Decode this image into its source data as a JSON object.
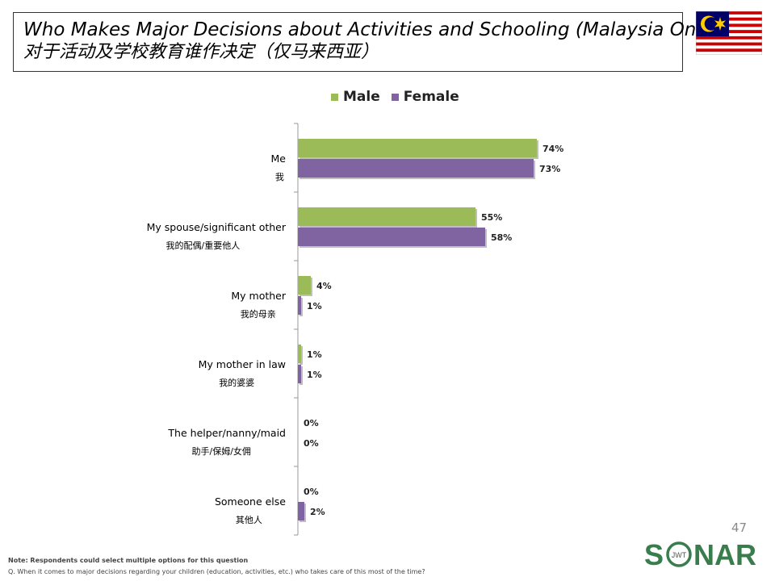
{
  "header": {
    "title_en": "Who Makes Major Decisions about Activities and Schooling (Malaysia Only)",
    "title_cn": "对于活动及学校教育谁作决定（仅马来西亚）"
  },
  "flag": {
    "icon": "malaysia-flag-icon"
  },
  "colors": {
    "male": "#9BBB59",
    "female": "#8064A2"
  },
  "chart_data": {
    "type": "bar",
    "orientation": "horizontal",
    "title": "",
    "categories": [
      {
        "en": "Me",
        "cn": "我"
      },
      {
        "en": "My spouse/significant other",
        "cn": "我的配偶/重要他人"
      },
      {
        "en": "My mother",
        "cn": "我的母亲"
      },
      {
        "en": "My mother in law",
        "cn": "我的婆婆"
      },
      {
        "en": "The helper/nanny/maid",
        "cn": "助手/保姆/女佣"
      },
      {
        "en": "Someone else",
        "cn": "其他人"
      }
    ],
    "series": [
      {
        "name": "Male",
        "values": [
          74,
          55,
          4,
          1,
          0,
          0
        ],
        "labels": [
          "74%",
          "55%",
          "4%",
          "1%",
          "0%",
          "0%"
        ]
      },
      {
        "name": "Female",
        "values": [
          73,
          58,
          1,
          1,
          0,
          2
        ],
        "labels": [
          "73%",
          "58%",
          "1%",
          "1%",
          "0%",
          "2%"
        ]
      }
    ],
    "xlim": [
      0,
      100
    ],
    "legend_position": "top",
    "grid": false
  },
  "footer": {
    "page_number": "47",
    "note": "Note: Respondents could select multiple options for this question",
    "question": "Q. When it comes to major decisions regarding your children (education, activities, etc.) who takes care of this most of the time?",
    "logo_left": "S",
    "logo_ring": "JWT",
    "logo_right": "NAR"
  }
}
